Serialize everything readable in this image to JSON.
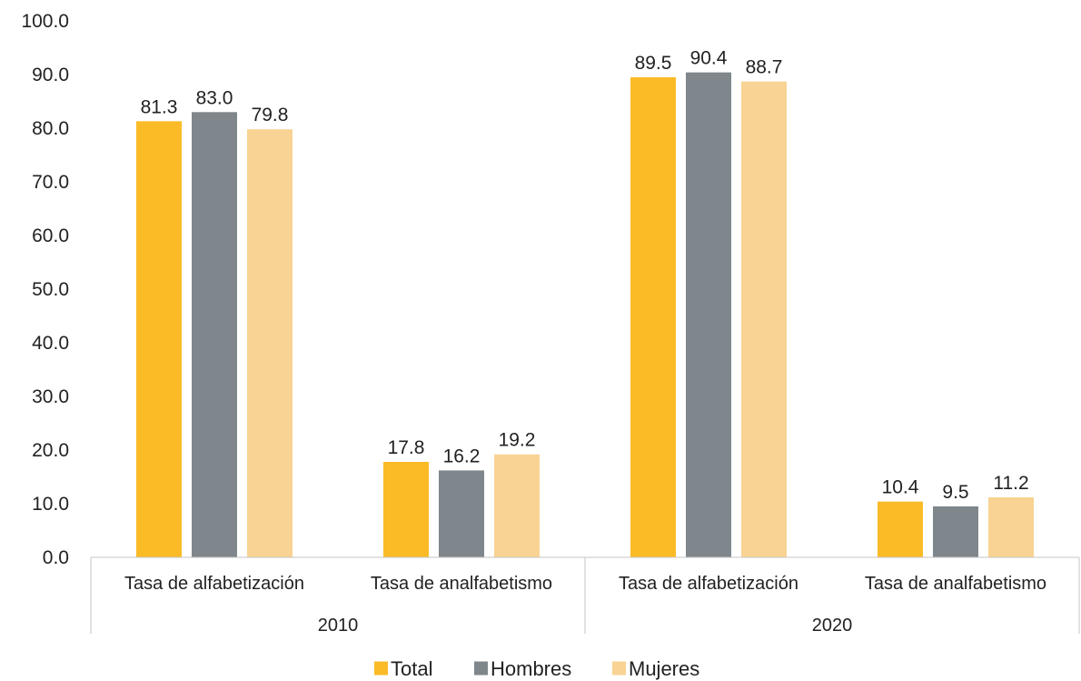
{
  "chart_data": {
    "type": "bar",
    "groups": [
      {
        "label": "2010",
        "categories": [
          "Tasa de alfabetización",
          "Tasa de analfabetismo"
        ]
      },
      {
        "label": "2020",
        "categories": [
          "Tasa de alfabetización",
          "Tasa de analfabetismo"
        ]
      }
    ],
    "series": [
      {
        "name": "Total",
        "color": "#fbbb27",
        "values": [
          81.3,
          17.8,
          89.5,
          10.4
        ]
      },
      {
        "name": "Hombres",
        "color": "#7f878c",
        "values": [
          83.0,
          16.2,
          90.4,
          9.5
        ]
      },
      {
        "name": "Mujeres",
        "color": "#f9d393",
        "values": [
          79.8,
          19.2,
          88.7,
          11.2
        ]
      }
    ],
    "ylim": [
      0,
      100
    ],
    "yticks": [
      "0.0",
      "10.0",
      "20.0",
      "30.0",
      "40.0",
      "50.0",
      "60.0",
      "70.0",
      "80.0",
      "90.0",
      "100.0"
    ],
    "grid": false,
    "legend_position": "bottom"
  }
}
